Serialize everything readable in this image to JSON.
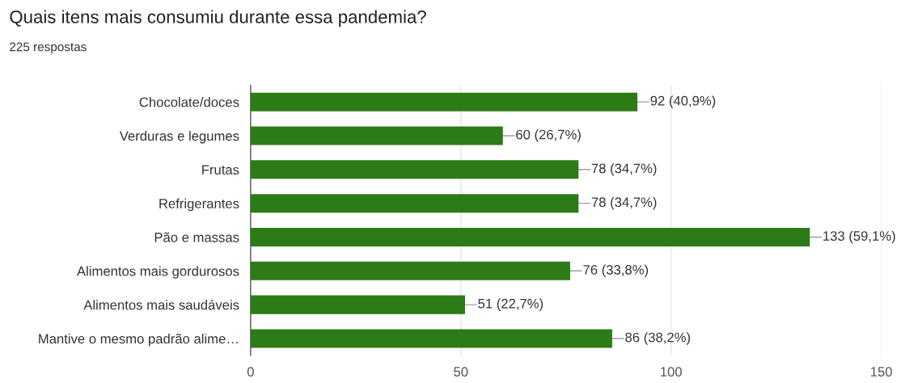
{
  "chart_data": {
    "type": "bar",
    "orientation": "horizontal",
    "title": "Quais itens mais consumiu durante essa pandemia?",
    "subtitle": "225 respostas",
    "categories": [
      "Chocolate/doces",
      "Verduras e legumes",
      "Frutas",
      "Refrigerantes",
      "Pão e massas",
      "Alimentos mais gordurosos",
      "Alimentos mais saudáveis",
      "Mantive o mesmo padrão alime…"
    ],
    "values": [
      92,
      60,
      78,
      78,
      133,
      76,
      51,
      86
    ],
    "value_labels": [
      "92 (40,9%)",
      "60 (26,7%)",
      "78 (34,7%)",
      "78 (34,7%)",
      "133 (59,1%)",
      "76 (33,8%)",
      "51 (22,7%)",
      "86 (38,2%)"
    ],
    "color": "#2d7b16",
    "xlim": [
      0,
      150
    ],
    "xticks": [
      0,
      50,
      100,
      150
    ],
    "grid": "x"
  }
}
